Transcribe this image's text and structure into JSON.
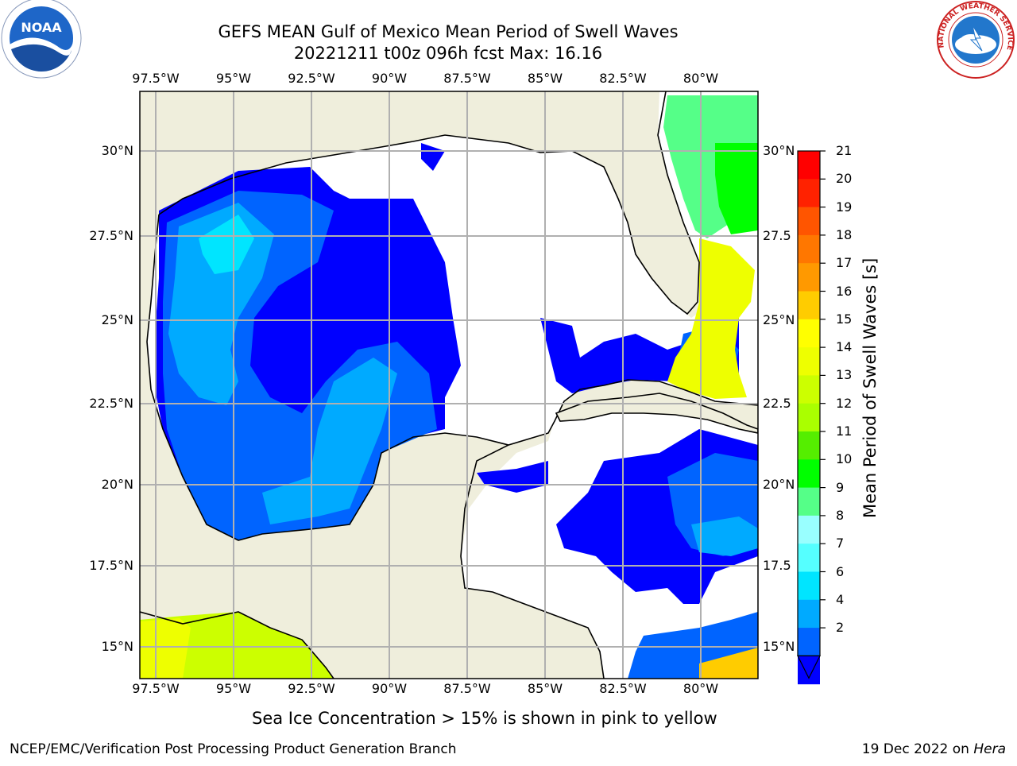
{
  "title_line1": "GEFS MEAN Gulf of Mexico Mean Period of Swell Waves",
  "title_line2": "20221211 t00z 096h fcst   Max: 16.16",
  "lon_labels": [
    "97.5°W",
    "95°W",
    "92.5°W",
    "90°W",
    "87.5°W",
    "85°W",
    "82.5°W",
    "80°W"
  ],
  "lat_labels": [
    "30°N",
    "27.5°N",
    "25°N",
    "22.5°N",
    "20°N",
    "17.5°N",
    "15°N"
  ],
  "lat_labels_right": [
    "30°N",
    "27.5",
    "25°N",
    "22.5",
    "20°N",
    "17.5",
    "15°N"
  ],
  "colorbar": {
    "label": "Mean Period of Swell Waves [s]",
    "ticks": [
      "2",
      "4",
      "6",
      "7",
      "8",
      "9",
      "10",
      "11",
      "12",
      "13",
      "14",
      "15",
      "16",
      "17",
      "18",
      "19",
      "20",
      "21"
    ],
    "colors": [
      "#0000ff",
      "#0064ff",
      "#00aaff",
      "#00e5ff",
      "#55ffff",
      "#99ffff",
      "#55ff88",
      "#00ff00",
      "#55ee00",
      "#aaff00",
      "#ccff00",
      "#eeff00",
      "#ffff00",
      "#ffcc00",
      "#ff9900",
      "#ff7700",
      "#ff5500",
      "#ff2200",
      "#ff0000"
    ]
  },
  "sea_ice_note": "Sea Ice Concentration > 15% is shown in pink to yellow",
  "footer_left": "NCEP/EMC/Verification Post Processing Product Generation Branch",
  "footer_date": "19 Dec 2022 on ",
  "footer_host": "Hera",
  "logos": {
    "left": "NOAA",
    "right": "NATIONAL WEATHER SERVICE"
  }
}
